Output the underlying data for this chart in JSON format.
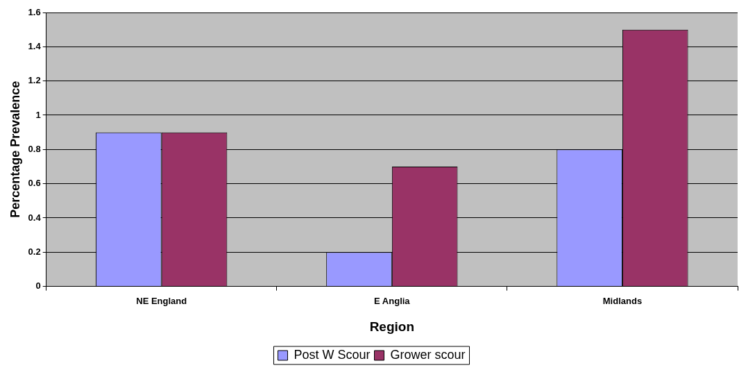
{
  "chart_data": {
    "type": "bar",
    "xlabel": "Region",
    "ylabel": "Percentage Prevalence",
    "categories": [
      "NE England",
      "E Anglia",
      "Midlands"
    ],
    "series": [
      {
        "name": "Post W Scour",
        "color": "#9999ff",
        "values": [
          0.9,
          0.2,
          0.8
        ]
      },
      {
        "name": "Grower scour",
        "color": "#993366",
        "values": [
          0.9,
          0.7,
          1.5
        ]
      }
    ],
    "ylim": [
      0,
      1.6
    ],
    "yticks": [
      0,
      0.2,
      0.4,
      0.6,
      0.8,
      1,
      1.2,
      1.4,
      1.6
    ],
    "grid": "y",
    "legend": "bottom"
  }
}
